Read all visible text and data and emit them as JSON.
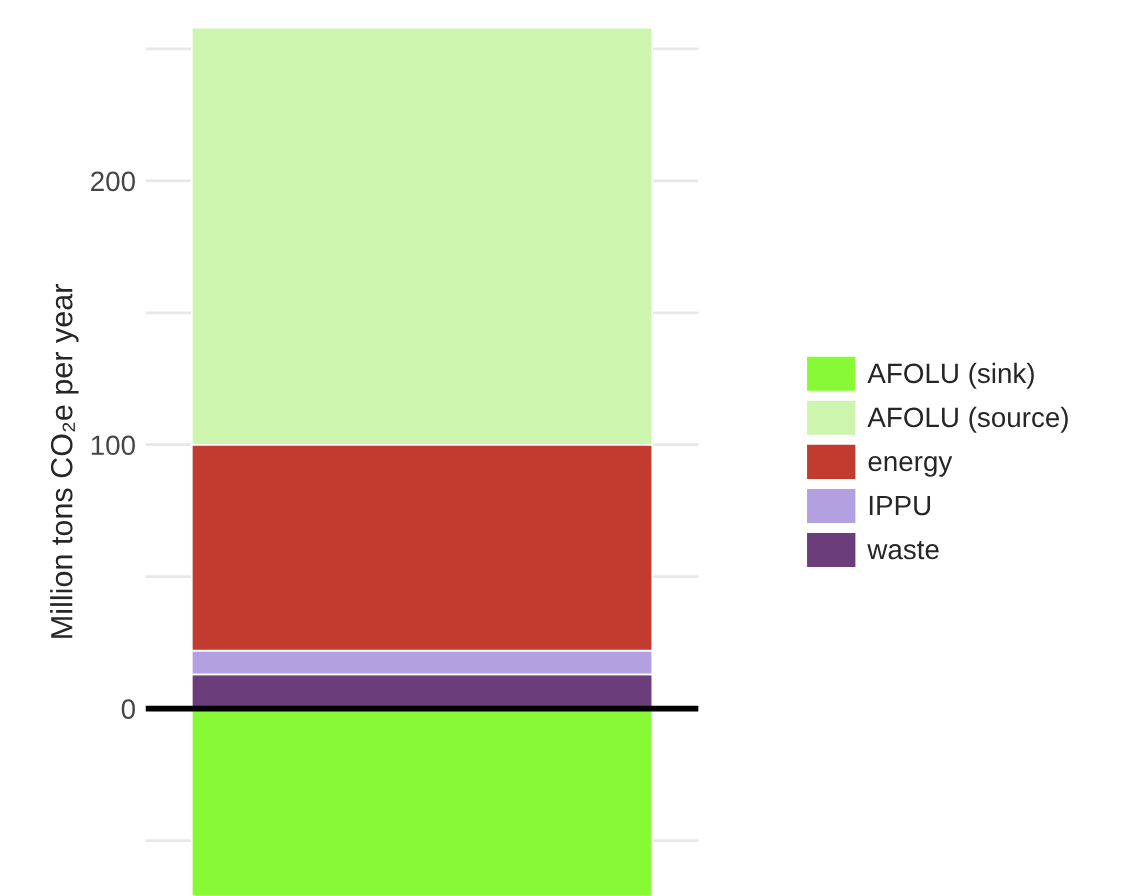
{
  "chart_data": {
    "type": "bar",
    "stacked": true,
    "ylabel": "Million tons CO₂e per year",
    "categories": [
      null
    ],
    "series": [
      {
        "name": "AFOLU (sink)",
        "color": "#88f935",
        "values": [
          -71
        ]
      },
      {
        "name": "waste",
        "color": "#6b3d7b",
        "values": [
          13
        ]
      },
      {
        "name": "IPPU",
        "color": "#b3a0e0",
        "values": [
          9
        ]
      },
      {
        "name": "energy",
        "color": "#c23b2e",
        "values": [
          78
        ]
      },
      {
        "name": "AFOLU (source)",
        "color": "#cdf5ad",
        "values": [
          158
        ]
      }
    ],
    "ylim": [
      -71,
      258
    ],
    "yticks": [
      {
        "value": -50,
        "label": null
      },
      0,
      {
        "value": 50,
        "label": null
      },
      100,
      {
        "value": 150,
        "label": null
      },
      200,
      {
        "value": 250,
        "label": null
      }
    ],
    "ref_lines": [
      {
        "axis": "y",
        "value": 0,
        "color": "#000000"
      }
    ],
    "grid": "y",
    "legend": "right"
  }
}
